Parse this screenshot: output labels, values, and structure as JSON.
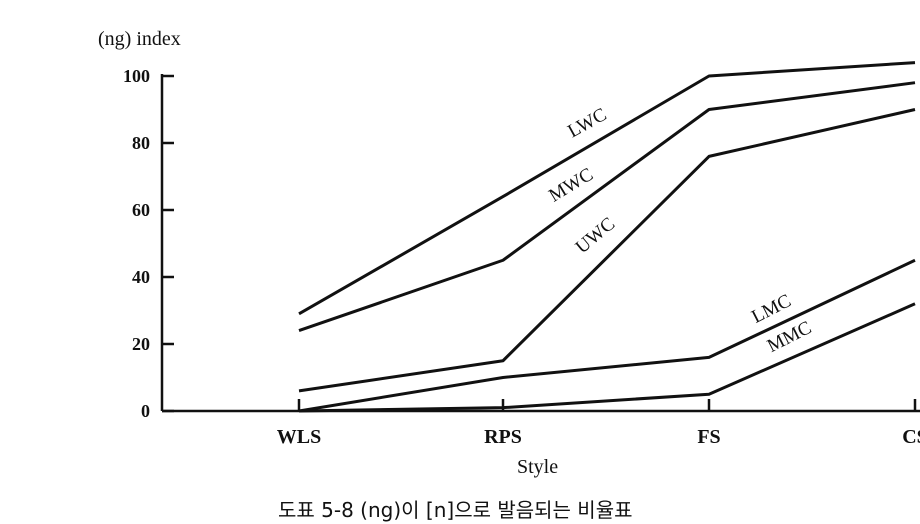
{
  "chart_data": {
    "type": "line",
    "title": "",
    "caption": "도표 5-8  (ng)이 [n]으로 발음되는 비율표",
    "xlabel": "Style",
    "ylabel": "(ng) index",
    "categories": [
      "WLS",
      "RPS",
      "FS",
      "CS"
    ],
    "ylim": [
      0,
      100
    ],
    "yticks": [
      "0",
      "20",
      "40",
      "60",
      "80",
      "100"
    ],
    "grid": false,
    "legend": "inline labels on lines",
    "series": [
      {
        "name": "LWC",
        "values": [
          29,
          64,
          100,
          104
        ]
      },
      {
        "name": "MWC",
        "values": [
          24,
          45,
          90,
          98
        ]
      },
      {
        "name": "UWC",
        "values": [
          6,
          15,
          76,
          90
        ]
      },
      {
        "name": "LMC",
        "values": [
          0,
          10,
          16,
          45
        ]
      },
      {
        "name": "MMC",
        "values": [
          0,
          1,
          5,
          32
        ]
      }
    ],
    "line_color": "#111111"
  }
}
